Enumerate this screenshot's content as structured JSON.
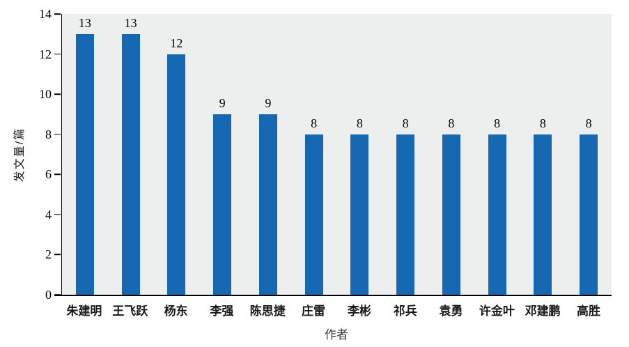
{
  "chart_data": {
    "type": "bar",
    "title": "",
    "xlabel": "作者",
    "ylabel": "发文量/篇",
    "categories": [
      "朱建明",
      "王飞跃",
      "杨东",
      "李强",
      "陈思捷",
      "庄雷",
      "李彬",
      "祁兵",
      "袁勇",
      "许金叶",
      "邓建鹏",
      "高胜"
    ],
    "values": [
      13,
      13,
      12,
      9,
      9,
      8,
      8,
      8,
      8,
      8,
      8,
      8
    ],
    "ylim": [
      0,
      14
    ],
    "yticks": [
      0,
      2,
      4,
      6,
      8,
      10,
      12,
      14
    ],
    "grid": false,
    "legend": "none",
    "value_labels": true,
    "bar_color": "#1668b2",
    "plot_bg": "#edeeee",
    "axis_color": "#000000"
  }
}
